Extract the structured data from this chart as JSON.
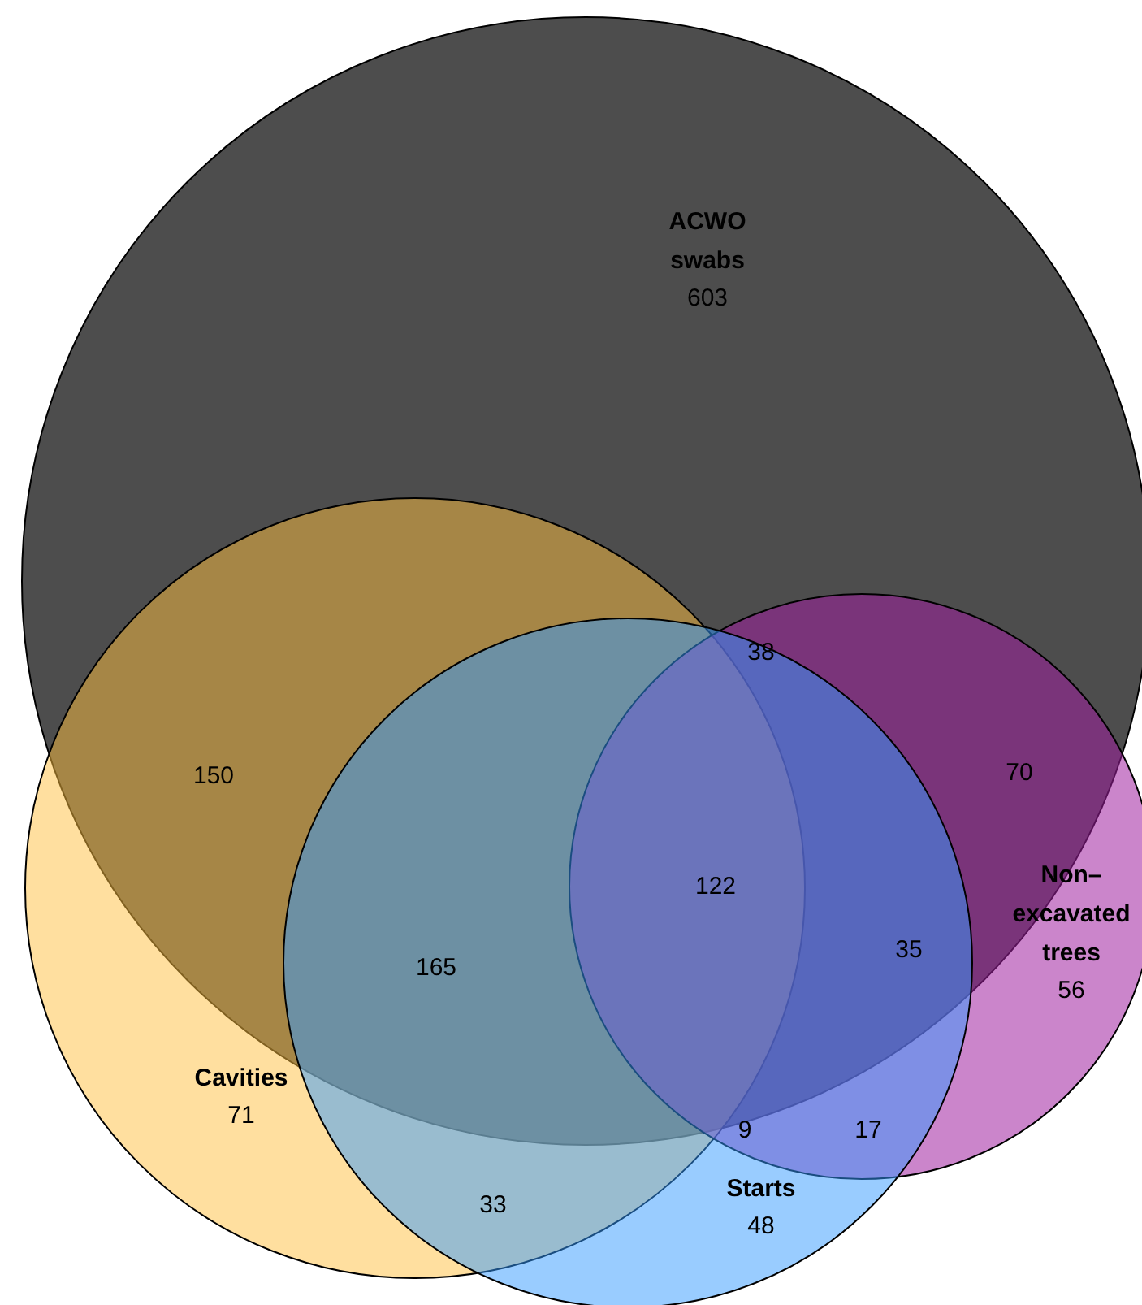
{
  "chart_data": {
    "type": "other",
    "categories": [
      "ACWO swabs",
      "Cavities",
      "Starts",
      "Non–excavated trees"
    ],
    "values": [
      603,
      71,
      48,
      56
    ],
    "colors": [
      "#4d4d4d",
      "#ffc040",
      "#3399ff",
      "#a020a0"
    ],
    "data_labels": true,
    "annotations": [
      "150",
      "38",
      "70",
      "122",
      "165",
      "35",
      "9",
      "17",
      "33"
    ]
  }
}
